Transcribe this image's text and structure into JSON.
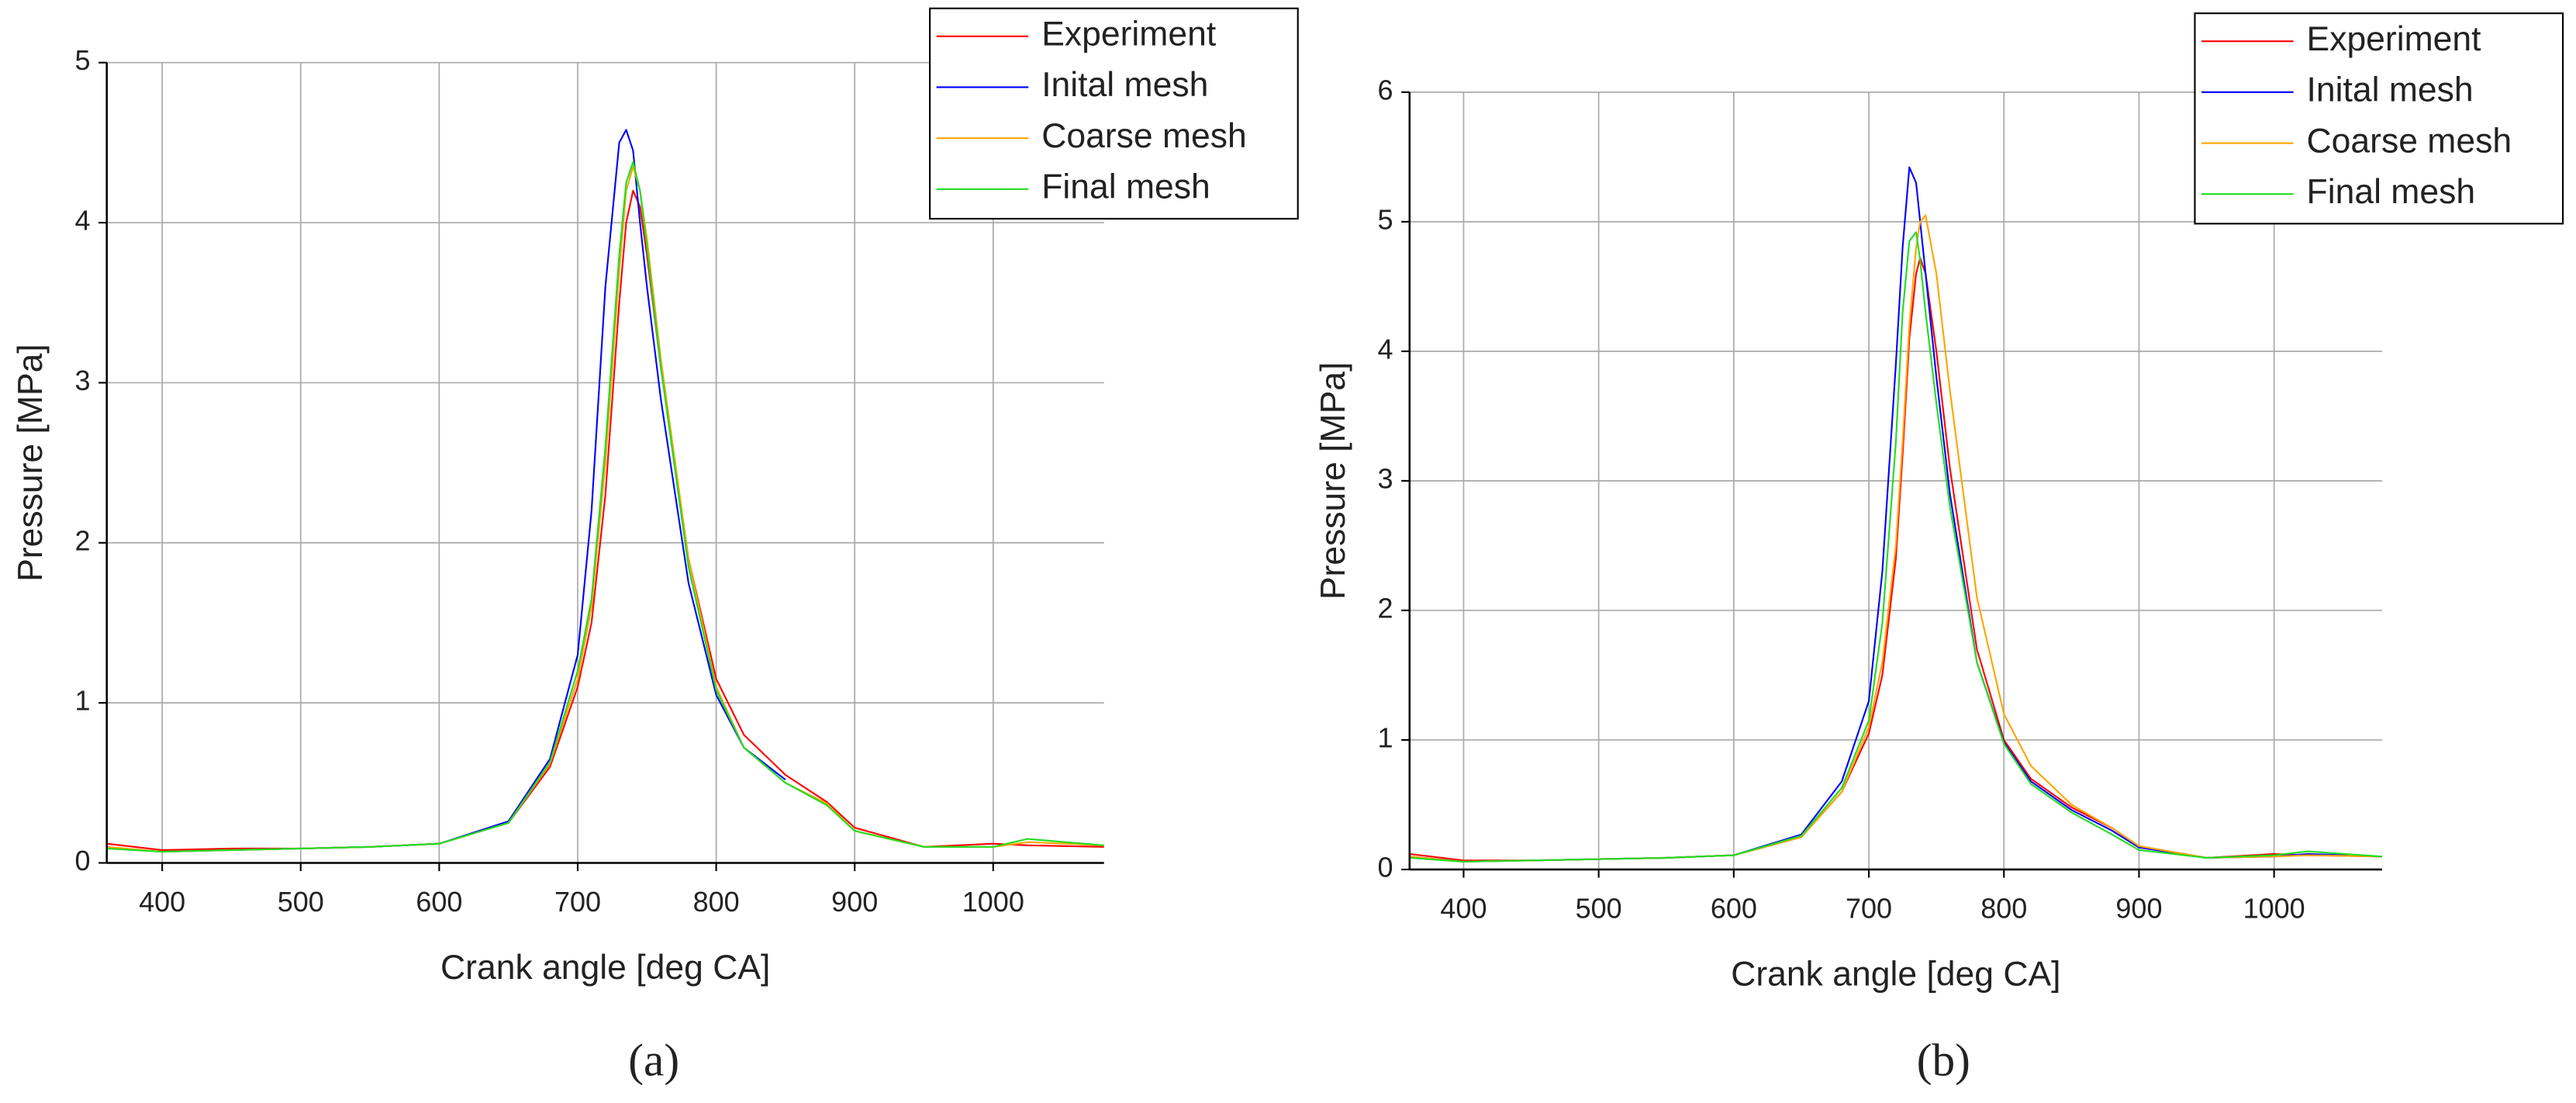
{
  "chart_data": [
    {
      "type": "line",
      "label": "(a)",
      "xlabel": "Crank angle [deg CA]",
      "ylabel": "Pressure [MPa]",
      "xlim": [
        360,
        1080
      ],
      "ylim": [
        0,
        5
      ],
      "xticks": [
        400,
        500,
        600,
        700,
        800,
        900,
        1000
      ],
      "yticks": [
        0,
        1,
        2,
        3,
        4,
        5
      ],
      "grid": true,
      "legend": "upper-right",
      "x": [
        360,
        400,
        450,
        500,
        550,
        600,
        650,
        680,
        700,
        710,
        720,
        730,
        735,
        740,
        745,
        750,
        760,
        780,
        800,
        820,
        850,
        880,
        900,
        950,
        1000,
        1025,
        1080
      ],
      "series": [
        {
          "name": "Experiment",
          "color": "#ff0000",
          "values": [
            0.12,
            0.08,
            0.09,
            0.09,
            0.1,
            0.12,
            0.25,
            0.6,
            1.1,
            1.5,
            2.3,
            3.5,
            4.0,
            4.2,
            4.1,
            3.8,
            3.1,
            1.9,
            1.15,
            0.8,
            0.55,
            0.38,
            0.22,
            0.1,
            0.12,
            0.11,
            0.1
          ]
        },
        {
          "name": "Inital mesh",
          "color": "#0000ff",
          "values": [
            null,
            0.07,
            0.08,
            0.09,
            0.1,
            0.12,
            0.26,
            0.65,
            1.3,
            2.2,
            3.6,
            4.5,
            4.58,
            4.45,
            4.0,
            3.6,
            2.9,
            1.75,
            1.05,
            0.72,
            0.52,
            null,
            null,
            null,
            null,
            null,
            null
          ]
        },
        {
          "name": "Coarse mesh",
          "color": "#ffa500",
          "values": [
            0.1,
            0.07,
            0.08,
            0.09,
            0.1,
            0.12,
            0.25,
            0.62,
            1.15,
            1.6,
            2.5,
            3.7,
            4.2,
            4.35,
            4.2,
            3.9,
            3.15,
            1.9,
            1.1,
            0.72,
            0.5,
            0.37,
            0.2,
            0.1,
            0.1,
            0.13,
            0.11
          ]
        },
        {
          "name": "Final mesh",
          "color": "#22dd22",
          "values": [
            0.09,
            0.07,
            0.08,
            0.09,
            0.1,
            0.12,
            0.25,
            0.63,
            1.2,
            1.65,
            2.6,
            3.8,
            4.25,
            4.38,
            4.2,
            3.85,
            3.1,
            1.85,
            1.08,
            0.72,
            0.5,
            0.36,
            0.2,
            0.1,
            0.1,
            0.15,
            0.11
          ]
        }
      ]
    },
    {
      "type": "line",
      "label": "(b)",
      "xlabel": "Crank angle [deg CA]",
      "ylabel": "Pressure [MPa]",
      "xlim": [
        360,
        1080
      ],
      "ylim": [
        0,
        6
      ],
      "xticks": [
        400,
        500,
        600,
        700,
        800,
        900,
        1000
      ],
      "yticks": [
        0,
        1,
        2,
        3,
        4,
        5,
        6
      ],
      "grid": true,
      "legend": "upper-right",
      "x": [
        360,
        400,
        450,
        500,
        550,
        600,
        650,
        680,
        700,
        710,
        720,
        725,
        730,
        735,
        738,
        742,
        750,
        760,
        780,
        800,
        820,
        850,
        880,
        900,
        950,
        1000,
        1025,
        1080
      ],
      "series": [
        {
          "name": "Experiment",
          "color": "#ff0000",
          "values": [
            0.12,
            0.07,
            0.07,
            0.08,
            0.09,
            0.11,
            0.25,
            0.6,
            1.05,
            1.5,
            2.4,
            3.2,
            4.1,
            4.6,
            4.72,
            4.6,
            4.0,
            3.1,
            1.7,
            1.0,
            0.7,
            0.48,
            0.32,
            0.18,
            0.09,
            0.12,
            0.11,
            0.1
          ]
        },
        {
          "name": "Inital mesh",
          "color": "#0000ff",
          "values": [
            0.1,
            0.06,
            0.07,
            0.08,
            0.09,
            0.11,
            0.27,
            0.68,
            1.3,
            2.3,
            3.9,
            4.8,
            5.42,
            5.3,
            5.0,
            4.6,
            3.8,
            2.9,
            1.6,
            0.98,
            0.68,
            0.46,
            0.3,
            0.17,
            0.09,
            0.1,
            0.12,
            0.1
          ]
        },
        {
          "name": "Coarse mesh",
          "color": "#ffa500",
          "values": [
            0.1,
            0.06,
            0.07,
            0.08,
            0.09,
            0.11,
            0.25,
            0.6,
            1.1,
            1.6,
            2.5,
            3.3,
            4.2,
            4.8,
            5.0,
            5.05,
            4.6,
            3.7,
            2.1,
            1.2,
            0.8,
            0.5,
            0.32,
            0.18,
            0.09,
            0.1,
            0.11,
            0.1
          ]
        },
        {
          "name": "Final mesh",
          "color": "#22dd22",
          "values": [
            0.09,
            0.06,
            0.07,
            0.08,
            0.09,
            0.11,
            0.26,
            0.63,
            1.15,
            1.9,
            3.3,
            4.3,
            4.85,
            4.92,
            4.7,
            4.3,
            3.6,
            2.8,
            1.6,
            0.97,
            0.66,
            0.44,
            0.27,
            0.15,
            0.09,
            0.11,
            0.14,
            0.1
          ]
        }
      ]
    }
  ]
}
